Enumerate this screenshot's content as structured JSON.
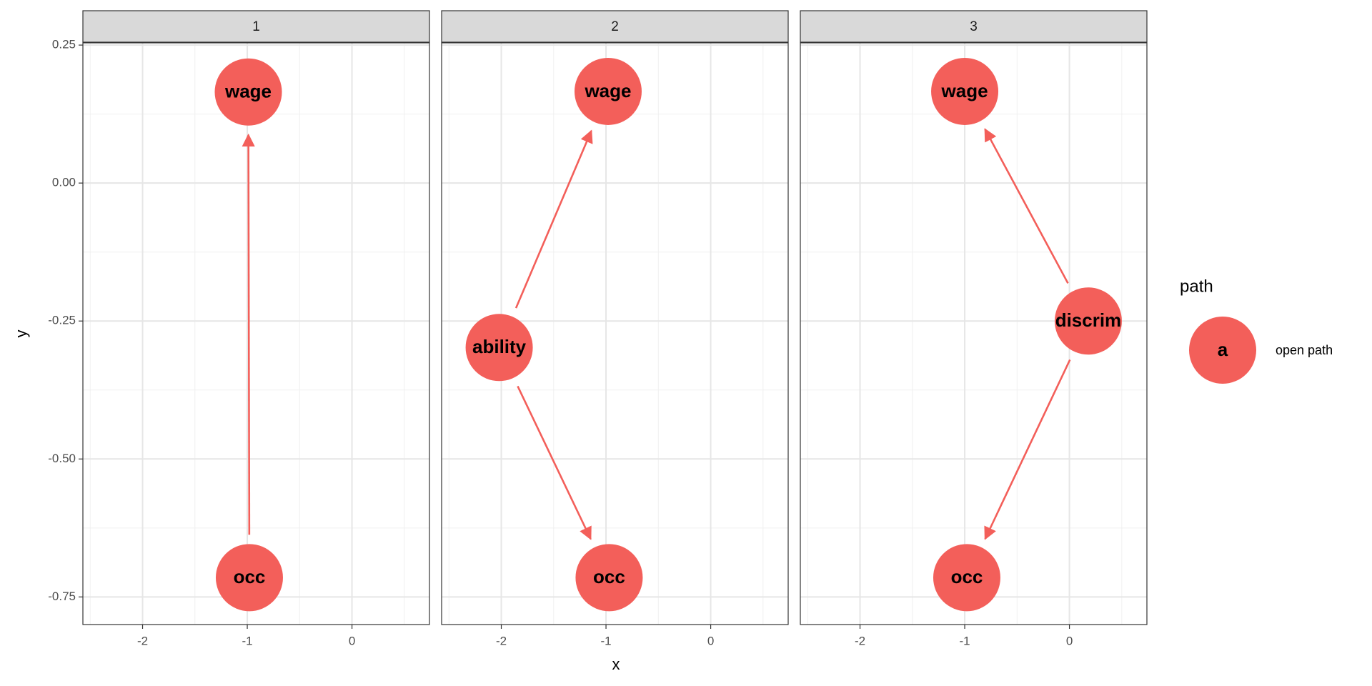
{
  "chart_data": {
    "type": "dag",
    "xlabel": "x",
    "ylabel": "y",
    "xlim": [
      -2.57,
      0.74
    ],
    "ylim": [
      -0.8,
      0.254
    ],
    "xticks": [
      -2,
      -1,
      0
    ],
    "yticks": [
      0.25,
      {
        "value": 0,
        "label": "0.00"
      },
      -0.25,
      {
        "value": -0.5,
        "label": "-0.50"
      },
      -0.75
    ],
    "grid": true,
    "legend": {
      "title": "path",
      "symbol": "a",
      "position": "right"
    },
    "series": [
      {
        "name": "open path",
        "color": "#f35f5a"
      }
    ],
    "facets": [
      {
        "label": "1",
        "nodes": [
          {
            "name": "wage",
            "x": -0.99,
            "y": 0.165
          },
          {
            "name": "occ",
            "x": -0.98,
            "y": -0.715
          }
        ],
        "edges": [
          {
            "from": "occ",
            "to": "wage"
          }
        ]
      },
      {
        "label": "2",
        "nodes": [
          {
            "name": "wage",
            "x": -0.98,
            "y": 0.166
          },
          {
            "name": "occ",
            "x": -0.97,
            "y": -0.715
          },
          {
            "name": "ability",
            "x": -2.02,
            "y": -0.298
          }
        ],
        "edges": [
          {
            "from": "ability",
            "to": "wage"
          },
          {
            "from": "ability",
            "to": "occ"
          }
        ]
      },
      {
        "label": "3",
        "nodes": [
          {
            "name": "wage",
            "x": -1.0,
            "y": 0.166
          },
          {
            "name": "occ",
            "x": -0.98,
            "y": -0.715
          },
          {
            "name": "discrim",
            "x": 0.18,
            "y": -0.25
          }
        ],
        "edges": [
          {
            "from": "discrim",
            "to": "wage"
          },
          {
            "from": "discrim",
            "to": "occ"
          }
        ]
      }
    ]
  }
}
